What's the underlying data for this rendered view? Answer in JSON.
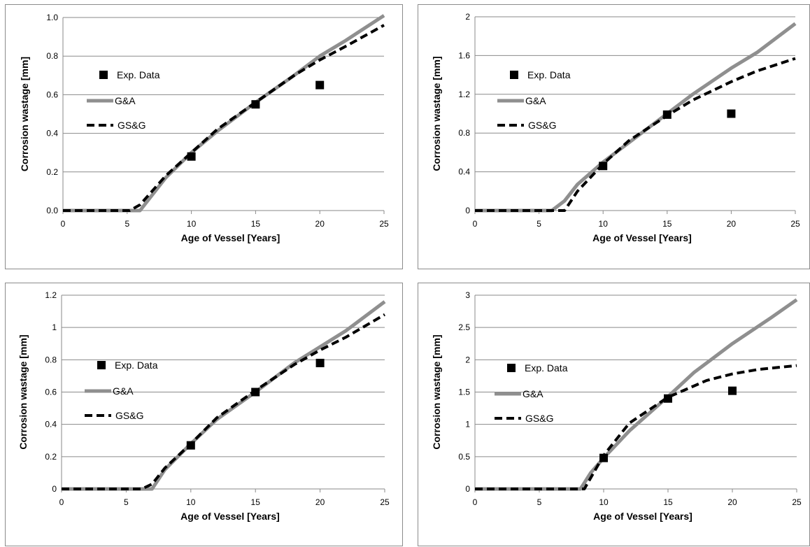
{
  "chart_data": [
    {
      "type": "line",
      "xlabel": "Age of Vessel [Years]",
      "ylabel": "Corrosion wastage [mm]",
      "xlim": [
        0,
        25
      ],
      "ylim": [
        0,
        1.0
      ],
      "x_ticks": [
        "0",
        "5",
        "10",
        "15",
        "20",
        "25"
      ],
      "y_ticks": [
        "0.0",
        "0.2",
        "0.4",
        "0.6",
        "0.8",
        "1.0"
      ],
      "grid": "horizontal",
      "legend": [
        "Exp. Data",
        "G&A",
        "GS&G"
      ],
      "series": [
        {
          "name": "Exp. Data",
          "style": "marker",
          "points": [
            [
              10,
              0.28
            ],
            [
              15,
              0.55
            ],
            [
              20,
              0.65
            ]
          ]
        },
        {
          "name": "G&A",
          "style": "solid-gray",
          "points": [
            [
              0,
              0
            ],
            [
              6,
              0
            ],
            [
              8,
              0.17
            ],
            [
              10,
              0.3
            ],
            [
              12,
              0.41
            ],
            [
              15,
              0.56
            ],
            [
              18,
              0.7
            ],
            [
              20,
              0.8
            ],
            [
              22,
              0.88
            ],
            [
              25,
              1.01
            ]
          ]
        },
        {
          "name": "GS&G",
          "style": "dashed-black",
          "points": [
            [
              0,
              0
            ],
            [
              5.2,
              0
            ],
            [
              6,
              0.03
            ],
            [
              8,
              0.18
            ],
            [
              10,
              0.3
            ],
            [
              12,
              0.42
            ],
            [
              15,
              0.56
            ],
            [
              18,
              0.7
            ],
            [
              20,
              0.78
            ],
            [
              22,
              0.85
            ],
            [
              25,
              0.96
            ]
          ]
        }
      ]
    },
    {
      "type": "line",
      "xlabel": "Age of Vessel [Years]",
      "ylabel": "Corrosion wastage [mm]",
      "xlim": [
        0,
        25
      ],
      "ylim": [
        0,
        2
      ],
      "x_ticks": [
        "0",
        "5",
        "10",
        "15",
        "20",
        "25"
      ],
      "y_ticks": [
        "0",
        "0.4",
        "0.8",
        "1.2",
        "1.6",
        "2"
      ],
      "grid": "horizontal",
      "legend": [
        "Exp. Data",
        "G&A",
        "GS&G"
      ],
      "series": [
        {
          "name": "Exp. Data",
          "style": "marker",
          "points": [
            [
              10,
              0.46
            ],
            [
              15,
              0.99
            ],
            [
              20,
              1.0
            ]
          ]
        },
        {
          "name": "G&A",
          "style": "solid-gray",
          "points": [
            [
              0,
              0
            ],
            [
              6,
              0
            ],
            [
              7,
              0.1
            ],
            [
              8,
              0.27
            ],
            [
              10,
              0.5
            ],
            [
              12,
              0.7
            ],
            [
              15,
              1.0
            ],
            [
              17,
              1.2
            ],
            [
              20,
              1.47
            ],
            [
              22,
              1.63
            ],
            [
              25,
              1.93
            ]
          ]
        },
        {
          "name": "GS&G",
          "style": "dashed-black",
          "points": [
            [
              0,
              0
            ],
            [
              7,
              0
            ],
            [
              8,
              0.2
            ],
            [
              10,
              0.48
            ],
            [
              12,
              0.72
            ],
            [
              15,
              0.98
            ],
            [
              17,
              1.14
            ],
            [
              20,
              1.33
            ],
            [
              22,
              1.44
            ],
            [
              25,
              1.57
            ]
          ]
        }
      ]
    },
    {
      "type": "line",
      "xlabel": "Age of Vessel [Years]",
      "ylabel": "Corrosion wastage [mm]",
      "xlim": [
        0,
        25
      ],
      "ylim": [
        0,
        1.2
      ],
      "x_ticks": [
        "0",
        "5",
        "10",
        "15",
        "20",
        "25"
      ],
      "y_ticks": [
        "0",
        "0.2",
        "0.4",
        "0.6",
        "0.8",
        "1",
        "1.2"
      ],
      "grid": "horizontal",
      "legend": [
        "Exp. Data",
        "G&A",
        "GS&G"
      ],
      "series": [
        {
          "name": "Exp. Data",
          "style": "marker",
          "points": [
            [
              10,
              0.27
            ],
            [
              15,
              0.6
            ],
            [
              20,
              0.78
            ]
          ]
        },
        {
          "name": "G&A",
          "style": "solid-gray",
          "points": [
            [
              0,
              0
            ],
            [
              7,
              0
            ],
            [
              8,
              0.12
            ],
            [
              10,
              0.28
            ],
            [
              12,
              0.43
            ],
            [
              15,
              0.6
            ],
            [
              18,
              0.78
            ],
            [
              20,
              0.88
            ],
            [
              22,
              0.98
            ],
            [
              25,
              1.16
            ]
          ]
        },
        {
          "name": "GS&G",
          "style": "dashed-black",
          "points": [
            [
              0,
              0
            ],
            [
              6.2,
              0
            ],
            [
              7,
              0.03
            ],
            [
              8,
              0.13
            ],
            [
              10,
              0.28
            ],
            [
              12,
              0.44
            ],
            [
              15,
              0.61
            ],
            [
              18,
              0.77
            ],
            [
              20,
              0.86
            ],
            [
              22,
              0.94
            ],
            [
              25,
              1.08
            ]
          ]
        }
      ]
    },
    {
      "type": "line",
      "xlabel": "Age of Vessel [Years]",
      "ylabel": "Corrosion wastage [mm]",
      "xlim": [
        0,
        25
      ],
      "ylim": [
        0,
        3
      ],
      "x_ticks": [
        "0",
        "5",
        "10",
        "15",
        "20",
        "25"
      ],
      "y_ticks": [
        "0",
        "0.5",
        "1",
        "1.5",
        "2",
        "2.5",
        "3"
      ],
      "grid": "horizontal",
      "legend": [
        "Exp. Data",
        "G&A",
        "GS&G"
      ],
      "series": [
        {
          "name": "Exp. Data",
          "style": "marker",
          "points": [
            [
              10,
              0.48
            ],
            [
              15,
              1.4
            ],
            [
              20,
              1.52
            ]
          ]
        },
        {
          "name": "G&A",
          "style": "solid-gray",
          "points": [
            [
              0,
              0
            ],
            [
              8.2,
              0
            ],
            [
              9,
              0.25
            ],
            [
              10,
              0.48
            ],
            [
              12,
              0.9
            ],
            [
              15,
              1.43
            ],
            [
              17,
              1.8
            ],
            [
              20,
              2.25
            ],
            [
              23,
              2.65
            ],
            [
              25,
              2.93
            ]
          ]
        },
        {
          "name": "GS&G",
          "style": "dashed-black",
          "points": [
            [
              0,
              0
            ],
            [
              8.5,
              0
            ],
            [
              10,
              0.52
            ],
            [
              12,
              1.02
            ],
            [
              15,
              1.42
            ],
            [
              18,
              1.68
            ],
            [
              20,
              1.78
            ],
            [
              22,
              1.85
            ],
            [
              25,
              1.91
            ]
          ]
        }
      ]
    }
  ]
}
